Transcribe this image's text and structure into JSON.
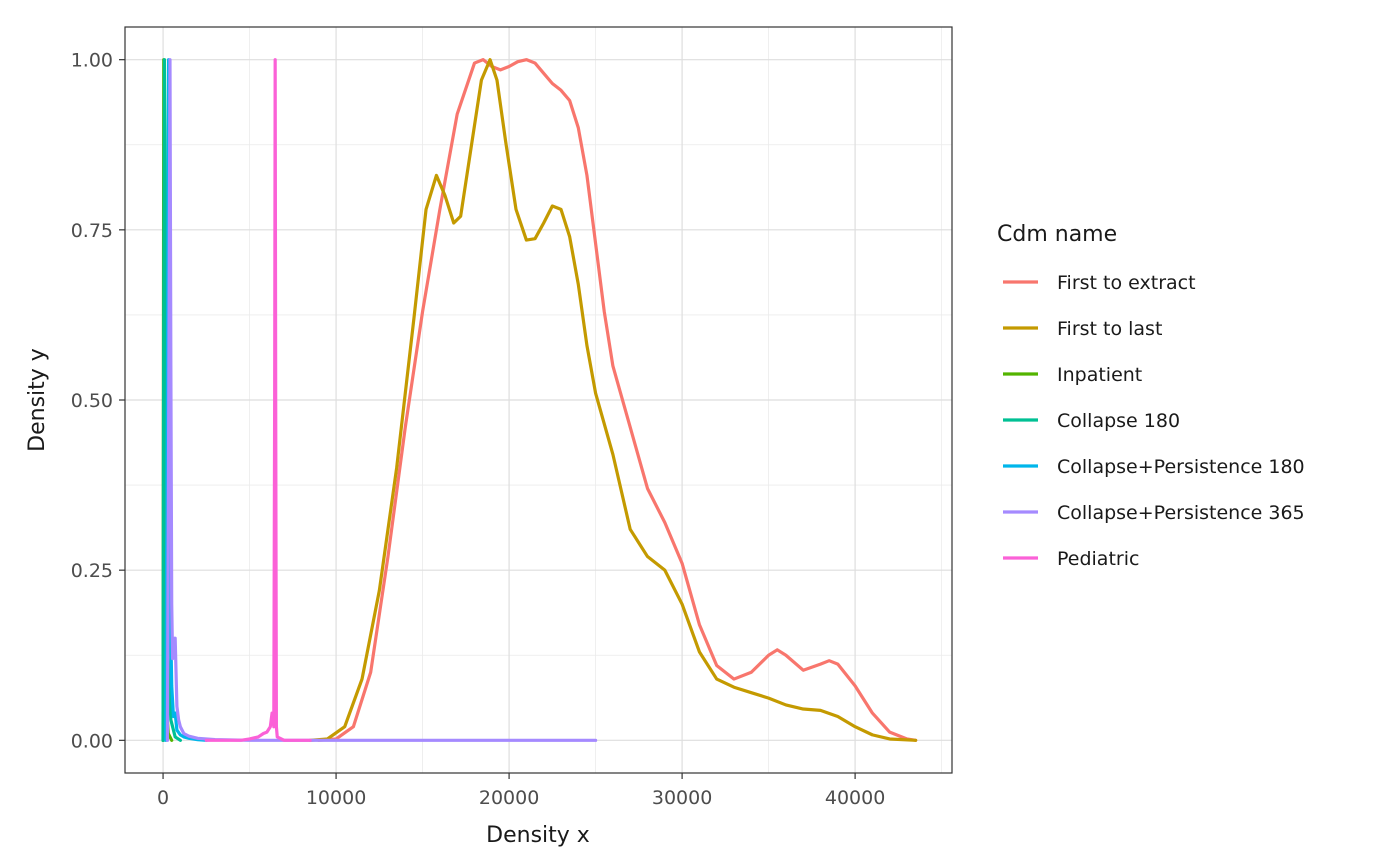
{
  "chart_data": {
    "type": "line",
    "title": "",
    "xlabel": "Density x",
    "ylabel": "Density y",
    "xlim": [
      -2200,
      45600
    ],
    "ylim": [
      -0.048,
      1.048
    ],
    "x_ticks": [
      0,
      10000,
      20000,
      30000,
      40000
    ],
    "x_tick_labels": [
      "0",
      "10000",
      "20000",
      "30000",
      "40000"
    ],
    "y_ticks": [
      0,
      0.25,
      0.5,
      0.75,
      1
    ],
    "y_tick_labels": [
      "0.00",
      "0.25",
      "0.50",
      "0.75",
      "1.00"
    ],
    "grid": true,
    "legend": {
      "title": "Cdm name",
      "placement": "right"
    },
    "series": [
      {
        "name": "First to extract",
        "color": "#F8766D",
        "points": [
          [
            9000,
            0
          ],
          [
            10000,
            0.002
          ],
          [
            11000,
            0.02
          ],
          [
            12000,
            0.1
          ],
          [
            13000,
            0.27
          ],
          [
            14000,
            0.46
          ],
          [
            15000,
            0.63
          ],
          [
            16000,
            0.78
          ],
          [
            17000,
            0.92
          ],
          [
            18000,
            0.995
          ],
          [
            18500,
            1.0
          ],
          [
            19000,
            0.99
          ],
          [
            19500,
            0.985
          ],
          [
            20000,
            0.99
          ],
          [
            20500,
            0.997
          ],
          [
            21000,
            1.0
          ],
          [
            21500,
            0.995
          ],
          [
            22000,
            0.98
          ],
          [
            22500,
            0.965
          ],
          [
            23000,
            0.955
          ],
          [
            23500,
            0.94
          ],
          [
            24000,
            0.9
          ],
          [
            24500,
            0.83
          ],
          [
            25000,
            0.73
          ],
          [
            25500,
            0.63
          ],
          [
            26000,
            0.55
          ],
          [
            27000,
            0.46
          ],
          [
            28000,
            0.37
          ],
          [
            29000,
            0.32
          ],
          [
            30000,
            0.26
          ],
          [
            31000,
            0.17
          ],
          [
            32000,
            0.11
          ],
          [
            33000,
            0.09
          ],
          [
            34000,
            0.1
          ],
          [
            35000,
            0.125
          ],
          [
            35500,
            0.133
          ],
          [
            36000,
            0.125
          ],
          [
            37000,
            0.103
          ],
          [
            38000,
            0.112
          ],
          [
            38500,
            0.117
          ],
          [
            39000,
            0.112
          ],
          [
            40000,
            0.08
          ],
          [
            41000,
            0.04
          ],
          [
            42000,
            0.012
          ],
          [
            43000,
            0.002
          ],
          [
            43500,
            0
          ]
        ]
      },
      {
        "name": "First to last",
        "color": "#C49A00",
        "points": [
          [
            8500,
            0
          ],
          [
            9500,
            0.002
          ],
          [
            10500,
            0.02
          ],
          [
            11500,
            0.09
          ],
          [
            12500,
            0.22
          ],
          [
            13500,
            0.4
          ],
          [
            14500,
            0.62
          ],
          [
            15200,
            0.78
          ],
          [
            15800,
            0.83
          ],
          [
            16300,
            0.8
          ],
          [
            16800,
            0.76
          ],
          [
            17200,
            0.77
          ],
          [
            17800,
            0.87
          ],
          [
            18400,
            0.97
          ],
          [
            18900,
            1.0
          ],
          [
            19300,
            0.97
          ],
          [
            19800,
            0.88
          ],
          [
            20400,
            0.78
          ],
          [
            21000,
            0.735
          ],
          [
            21500,
            0.737
          ],
          [
            22000,
            0.76
          ],
          [
            22500,
            0.785
          ],
          [
            23000,
            0.78
          ],
          [
            23500,
            0.74
          ],
          [
            24000,
            0.67
          ],
          [
            24500,
            0.58
          ],
          [
            25000,
            0.51
          ],
          [
            26000,
            0.42
          ],
          [
            27000,
            0.31
          ],
          [
            28000,
            0.27
          ],
          [
            29000,
            0.25
          ],
          [
            30000,
            0.2
          ],
          [
            31000,
            0.13
          ],
          [
            32000,
            0.09
          ],
          [
            33000,
            0.078
          ],
          [
            34000,
            0.07
          ],
          [
            35000,
            0.062
          ],
          [
            36000,
            0.052
          ],
          [
            37000,
            0.046
          ],
          [
            38000,
            0.044
          ],
          [
            39000,
            0.035
          ],
          [
            40000,
            0.02
          ],
          [
            41000,
            0.008
          ],
          [
            42000,
            0.002
          ],
          [
            43500,
            0
          ]
        ]
      },
      {
        "name": "Inpatient",
        "color": "#53B400",
        "points": [
          [
            0,
            0
          ],
          [
            10,
            0.3
          ],
          [
            40,
            1.0
          ],
          [
            80,
            0.7
          ],
          [
            130,
            0.25
          ],
          [
            200,
            0.05
          ],
          [
            300,
            0.01
          ],
          [
            500,
            0
          ]
        ]
      },
      {
        "name": "Collapse 180",
        "color": "#00C094",
        "points": [
          [
            0,
            0
          ],
          [
            30,
            0.5
          ],
          [
            80,
            1.0
          ],
          [
            130,
            0.8
          ],
          [
            200,
            0.4
          ],
          [
            300,
            0.12
          ],
          [
            450,
            0.03
          ],
          [
            700,
            0.005
          ],
          [
            1000,
            0
          ]
        ]
      },
      {
        "name": "Collapse+Persistence 180",
        "color": "#00B6EB",
        "points": [
          [
            150,
            0
          ],
          [
            250,
            0.5
          ],
          [
            320,
            1.0
          ],
          [
            370,
            0.6
          ],
          [
            420,
            0.2
          ],
          [
            500,
            0.08
          ],
          [
            600,
            0.035
          ],
          [
            700,
            0.04
          ],
          [
            800,
            0.015
          ],
          [
            1000,
            0.008
          ],
          [
            1200,
            0.005
          ],
          [
            1500,
            0.003
          ],
          [
            2000,
            0.001
          ],
          [
            2500,
            0
          ]
        ]
      },
      {
        "name": "Collapse+Persistence 365",
        "color": "#A58AFF",
        "points": [
          [
            250,
            0
          ],
          [
            330,
            0.5
          ],
          [
            400,
            1.0
          ],
          [
            450,
            0.55
          ],
          [
            500,
            0.2
          ],
          [
            550,
            0.12
          ],
          [
            600,
            0.13
          ],
          [
            650,
            0.15
          ],
          [
            700,
            0.15
          ],
          [
            750,
            0.1
          ],
          [
            800,
            0.05
          ],
          [
            900,
            0.03
          ],
          [
            1000,
            0.02
          ],
          [
            1200,
            0.01
          ],
          [
            1500,
            0.006
          ],
          [
            2000,
            0.003
          ],
          [
            3000,
            0.001
          ],
          [
            5000,
            0
          ],
          [
            10000,
            0
          ],
          [
            15000,
            0
          ],
          [
            20000,
            0
          ],
          [
            25000,
            0
          ]
        ]
      },
      {
        "name": "Pediatric",
        "color": "#FB61D7",
        "points": [
          [
            2500,
            0
          ],
          [
            4500,
            0
          ],
          [
            5000,
            0.002
          ],
          [
            5500,
            0.005
          ],
          [
            5800,
            0.01
          ],
          [
            6000,
            0.012
          ],
          [
            6200,
            0.02
          ],
          [
            6300,
            0.04
          ],
          [
            6350,
            0.035
          ],
          [
            6400,
            0.02
          ],
          [
            6450,
            0.5
          ],
          [
            6480,
            1.0
          ],
          [
            6510,
            0.5
          ],
          [
            6550,
            0.02
          ],
          [
            6600,
            0.005
          ],
          [
            7000,
            0
          ],
          [
            8500,
            0
          ]
        ]
      }
    ]
  }
}
